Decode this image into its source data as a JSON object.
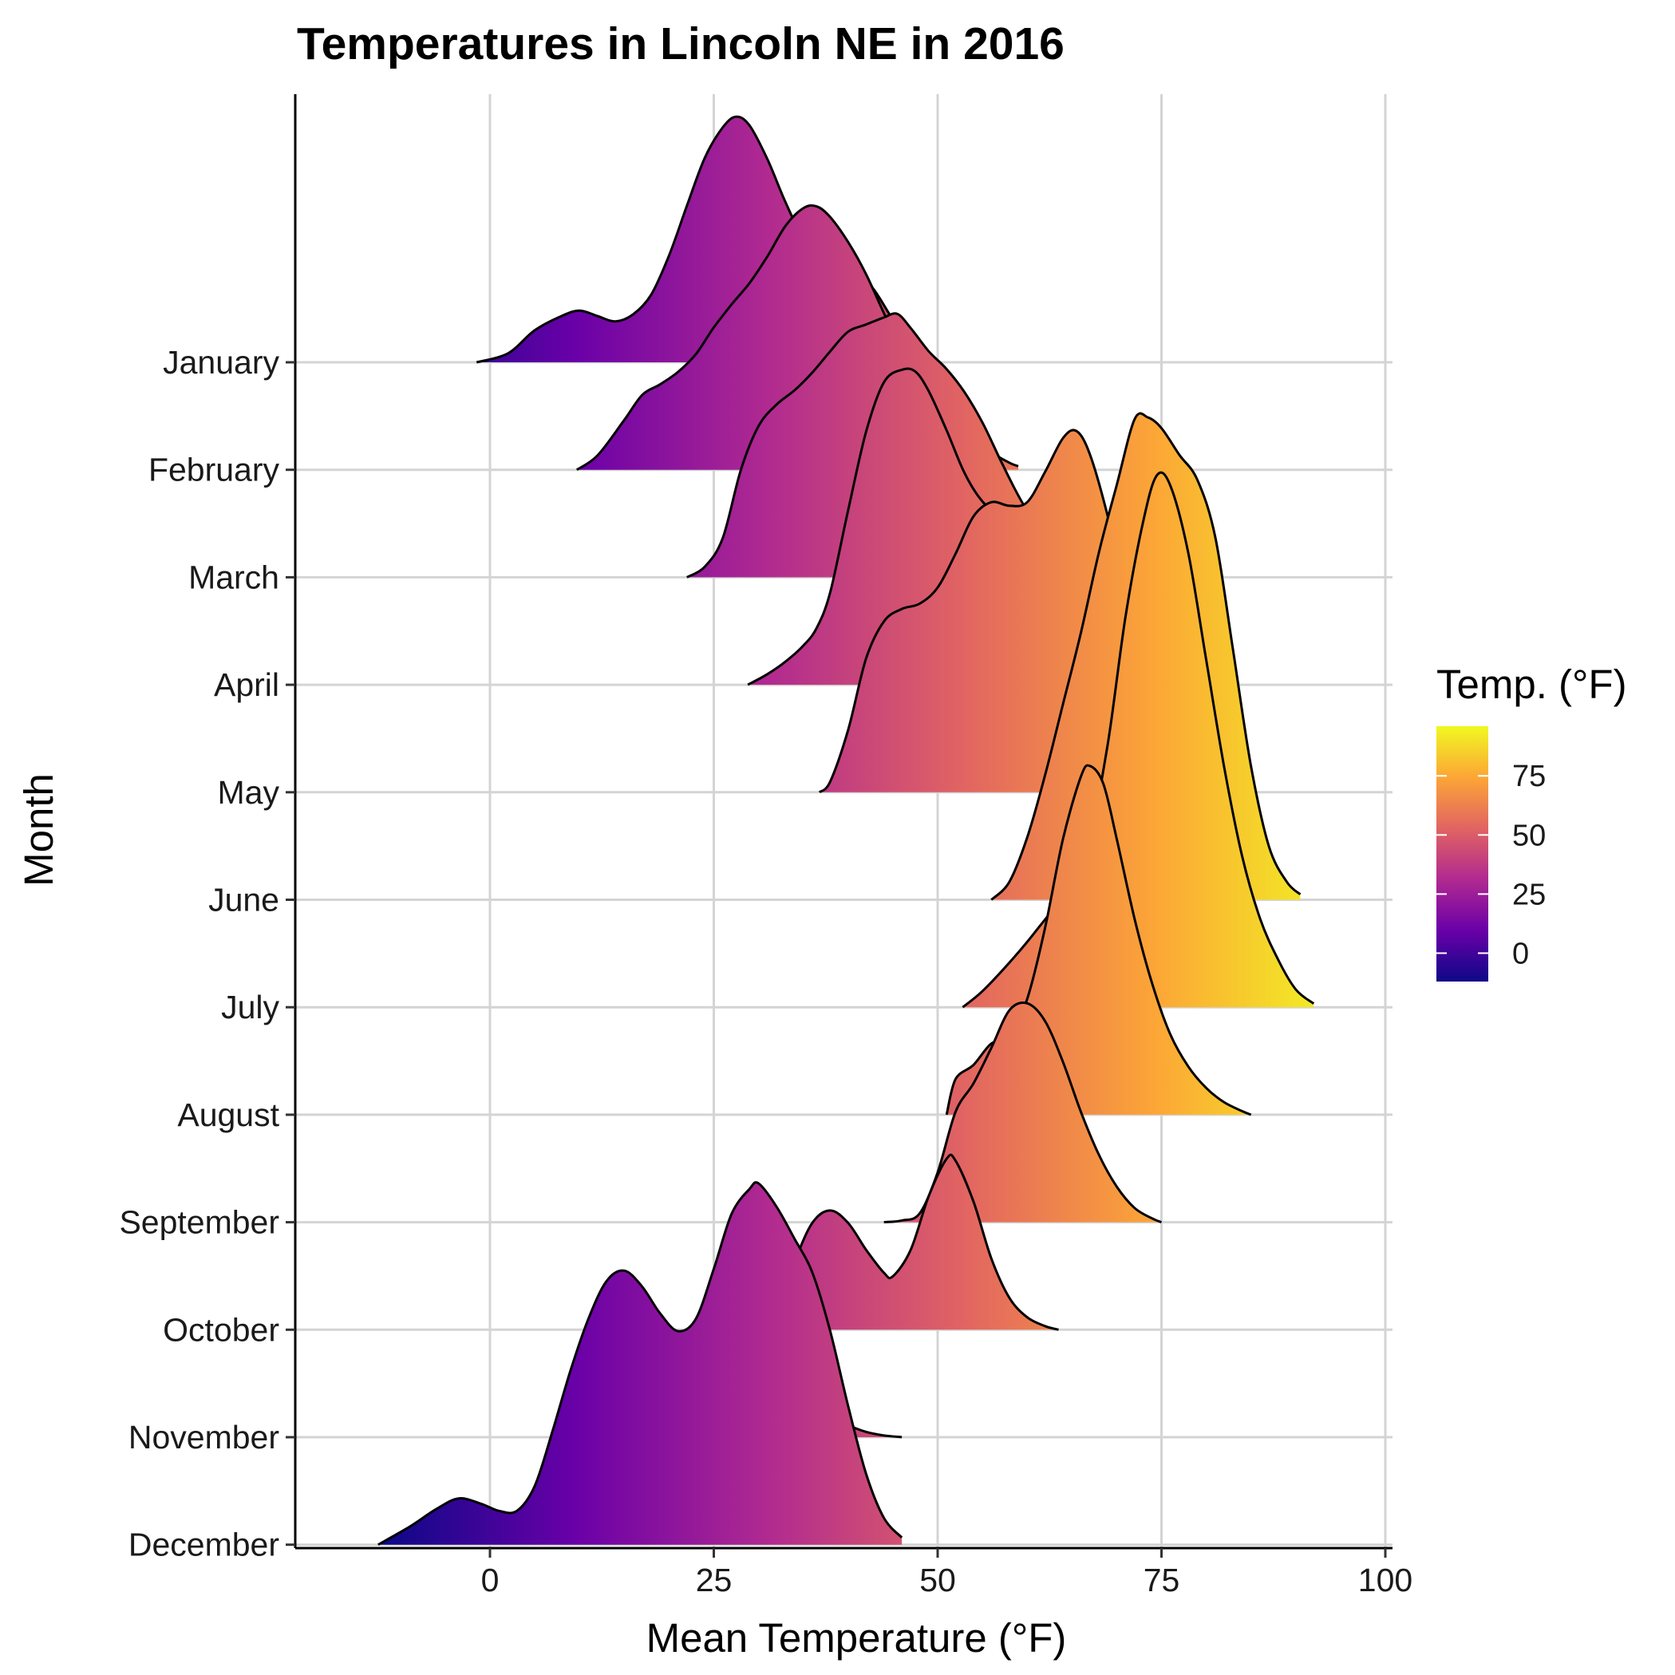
{
  "chart_data": {
    "type": "ridgeline",
    "title": "Temperatures in Lincoln NE in 2016",
    "xlabel": "Mean Temperature (°F)",
    "ylabel": "Month",
    "xlim": [
      -22,
      102
    ],
    "x_ticks": [
      0,
      25,
      50,
      75,
      100
    ],
    "grid": true,
    "legend": {
      "title": "Temp. (°F)",
      "position": "right",
      "ticks": [
        0,
        25,
        50,
        75
      ],
      "range": [
        -12,
        96
      ],
      "colormap": "plasma",
      "colors": [
        "#0d0887",
        "#6a00a8",
        "#b12a90",
        "#e16462",
        "#fca636",
        "#f0f921"
      ]
    },
    "series": [
      {
        "name": "January",
        "points": [
          [
            -1.5,
            0
          ],
          [
            2,
            0.05
          ],
          [
            5,
            0.18
          ],
          [
            8,
            0.26
          ],
          [
            10,
            0.29
          ],
          [
            12,
            0.26
          ],
          [
            14,
            0.23
          ],
          [
            16,
            0.27
          ],
          [
            18,
            0.38
          ],
          [
            20,
            0.6
          ],
          [
            22,
            0.88
          ],
          [
            24,
            1.15
          ],
          [
            26,
            1.32
          ],
          [
            27.5,
            1.38
          ],
          [
            29,
            1.33
          ],
          [
            31,
            1.14
          ],
          [
            33,
            0.9
          ],
          [
            35,
            0.7
          ],
          [
            37,
            0.61
          ],
          [
            39,
            0.58
          ],
          [
            41,
            0.52
          ],
          [
            43,
            0.4
          ],
          [
            45,
            0.24
          ],
          [
            47,
            0.1
          ],
          [
            49,
            0.04
          ]
        ]
      },
      {
        "name": "February",
        "points": [
          [
            9.7,
            0
          ],
          [
            12,
            0.08
          ],
          [
            15,
            0.28
          ],
          [
            17,
            0.42
          ],
          [
            19,
            0.48
          ],
          [
            21,
            0.55
          ],
          [
            23,
            0.65
          ],
          [
            25,
            0.8
          ],
          [
            27,
            0.93
          ],
          [
            29,
            1.05
          ],
          [
            31,
            1.2
          ],
          [
            33,
            1.37
          ],
          [
            35,
            1.47
          ],
          [
            36.5,
            1.48
          ],
          [
            38,
            1.42
          ],
          [
            40,
            1.28
          ],
          [
            42,
            1.1
          ],
          [
            44,
            0.88
          ],
          [
            46,
            0.67
          ],
          [
            48,
            0.5
          ],
          [
            50,
            0.38
          ],
          [
            52,
            0.29
          ],
          [
            54,
            0.2
          ],
          [
            56,
            0.1
          ],
          [
            58,
            0.04
          ],
          [
            59,
            0.02
          ]
        ]
      },
      {
        "name": "March",
        "points": [
          [
            22,
            0
          ],
          [
            24,
            0.06
          ],
          [
            26,
            0.22
          ],
          [
            28,
            0.6
          ],
          [
            30,
            0.85
          ],
          [
            32,
            0.97
          ],
          [
            34,
            1.05
          ],
          [
            36,
            1.15
          ],
          [
            38,
            1.27
          ],
          [
            40,
            1.38
          ],
          [
            42,
            1.42
          ],
          [
            44,
            1.46
          ],
          [
            45.5,
            1.48
          ],
          [
            47,
            1.4
          ],
          [
            49,
            1.27
          ],
          [
            51,
            1.17
          ],
          [
            53,
            1.04
          ],
          [
            55,
            0.87
          ],
          [
            57,
            0.66
          ],
          [
            59,
            0.46
          ],
          [
            61,
            0.29
          ],
          [
            63,
            0.14
          ],
          [
            64.5,
            0.05
          ]
        ]
      },
      {
        "name": "April",
        "points": [
          [
            28.8,
            0
          ],
          [
            31,
            0.06
          ],
          [
            33,
            0.13
          ],
          [
            35,
            0.22
          ],
          [
            36.5,
            0.32
          ],
          [
            38,
            0.52
          ],
          [
            40,
            0.98
          ],
          [
            42,
            1.42
          ],
          [
            44,
            1.7
          ],
          [
            46,
            1.77
          ],
          [
            47.5,
            1.76
          ],
          [
            49,
            1.65
          ],
          [
            51,
            1.43
          ],
          [
            53,
            1.19
          ],
          [
            55,
            1.03
          ],
          [
            57,
            0.95
          ],
          [
            59,
            0.96
          ],
          [
            61,
            0.92
          ],
          [
            63,
            0.86
          ],
          [
            65,
            0.66
          ],
          [
            67,
            0.38
          ],
          [
            69,
            0.16
          ],
          [
            70,
            0.06
          ]
        ]
      },
      {
        "name": "May",
        "points": [
          [
            36.8,
            0
          ],
          [
            38,
            0.06
          ],
          [
            40,
            0.35
          ],
          [
            42,
            0.75
          ],
          [
            44,
            0.96
          ],
          [
            46,
            1.03
          ],
          [
            48,
            1.06
          ],
          [
            50,
            1.15
          ],
          [
            52,
            1.34
          ],
          [
            54,
            1.55
          ],
          [
            56,
            1.63
          ],
          [
            58,
            1.61
          ],
          [
            60,
            1.63
          ],
          [
            62,
            1.8
          ],
          [
            64,
            1.99
          ],
          [
            65.5,
            2.03
          ],
          [
            67,
            1.9
          ],
          [
            69,
            1.55
          ],
          [
            71,
            1.1
          ],
          [
            73,
            0.65
          ],
          [
            75,
            0.3
          ],
          [
            77,
            0.1
          ],
          [
            78,
            0.04
          ]
        ]
      },
      {
        "name": "June",
        "points": [
          [
            56,
            0
          ],
          [
            58,
            0.1
          ],
          [
            60,
            0.35
          ],
          [
            62,
            0.7
          ],
          [
            64,
            1.1
          ],
          [
            66,
            1.5
          ],
          [
            68,
            1.95
          ],
          [
            70,
            2.33
          ],
          [
            72,
            2.7
          ],
          [
            73.5,
            2.71
          ],
          [
            75,
            2.65
          ],
          [
            77,
            2.5
          ],
          [
            79,
            2.36
          ],
          [
            81,
            2.04
          ],
          [
            83,
            1.4
          ],
          [
            85,
            0.75
          ],
          [
            87,
            0.3
          ],
          [
            89,
            0.1
          ],
          [
            90.5,
            0.03
          ]
        ]
      },
      {
        "name": "July",
        "points": [
          [
            52.8,
            0
          ],
          [
            55,
            0.09
          ],
          [
            58,
            0.25
          ],
          [
            61,
            0.43
          ],
          [
            64,
            0.64
          ],
          [
            67,
            0.98
          ],
          [
            69,
            1.48
          ],
          [
            71,
            2.2
          ],
          [
            73,
            2.74
          ],
          [
            74.5,
            2.99
          ],
          [
            76,
            2.93
          ],
          [
            78,
            2.55
          ],
          [
            80,
            1.95
          ],
          [
            82,
            1.35
          ],
          [
            84,
            0.85
          ],
          [
            86,
            0.5
          ],
          [
            88,
            0.27
          ],
          [
            90,
            0.1
          ],
          [
            92,
            0.02
          ]
        ]
      },
      {
        "name": "August",
        "points": [
          [
            51,
            0
          ],
          [
            52,
            0.2
          ],
          [
            54,
            0.28
          ],
          [
            56,
            0.4
          ],
          [
            58,
            0.43
          ],
          [
            60,
            0.65
          ],
          [
            62,
            1.05
          ],
          [
            64,
            1.55
          ],
          [
            66,
            1.9
          ],
          [
            67,
            1.96
          ],
          [
            68.5,
            1.86
          ],
          [
            70,
            1.55
          ],
          [
            72,
            1.1
          ],
          [
            74,
            0.73
          ],
          [
            76,
            0.45
          ],
          [
            78,
            0.27
          ],
          [
            80,
            0.15
          ],
          [
            82,
            0.07
          ],
          [
            84,
            0.02
          ],
          [
            85,
            0
          ]
        ]
      },
      {
        "name": "September",
        "points": [
          [
            44,
            0
          ],
          [
            46,
            0.01
          ],
          [
            48,
            0.05
          ],
          [
            50,
            0.28
          ],
          [
            52,
            0.62
          ],
          [
            54,
            0.78
          ],
          [
            56,
            0.98
          ],
          [
            58,
            1.19
          ],
          [
            60,
            1.23
          ],
          [
            62,
            1.13
          ],
          [
            64,
            0.9
          ],
          [
            66,
            0.62
          ],
          [
            68,
            0.38
          ],
          [
            70,
            0.2
          ],
          [
            72,
            0.08
          ],
          [
            74,
            0.02
          ],
          [
            75,
            0
          ]
        ]
      },
      {
        "name": "October",
        "points": [
          [
            30.5,
            0
          ],
          [
            32,
            0.1
          ],
          [
            34,
            0.38
          ],
          [
            36,
            0.6
          ],
          [
            38,
            0.67
          ],
          [
            40,
            0.6
          ],
          [
            42,
            0.45
          ],
          [
            44,
            0.32
          ],
          [
            45,
            0.3
          ],
          [
            47,
            0.45
          ],
          [
            49,
            0.75
          ],
          [
            51,
            0.96
          ],
          [
            52,
            0.95
          ],
          [
            54,
            0.72
          ],
          [
            56,
            0.4
          ],
          [
            58,
            0.18
          ],
          [
            60,
            0.07
          ],
          [
            62,
            0.02
          ],
          [
            63.5,
            0
          ]
        ]
      },
      {
        "name": "November",
        "points": [
          [
            18,
            0
          ],
          [
            20,
            0.04
          ],
          [
            22,
            0.14
          ],
          [
            24,
            0.26
          ],
          [
            26,
            0.38
          ],
          [
            28,
            0.5
          ],
          [
            30,
            0.54
          ],
          [
            32,
            0.48
          ],
          [
            34,
            0.38
          ],
          [
            36,
            0.25
          ],
          [
            38,
            0.14
          ],
          [
            40,
            0.07
          ],
          [
            42,
            0.03
          ],
          [
            44,
            0.01
          ],
          [
            46,
            0
          ]
        ]
      },
      {
        "name": "December",
        "points": [
          [
            -12.5,
            0
          ],
          [
            -9,
            0.1
          ],
          [
            -6,
            0.2
          ],
          [
            -3.5,
            0.26
          ],
          [
            -1,
            0.23
          ],
          [
            1,
            0.19
          ],
          [
            3,
            0.19
          ],
          [
            5,
            0.33
          ],
          [
            7,
            0.64
          ],
          [
            9,
            0.98
          ],
          [
            11,
            1.27
          ],
          [
            13,
            1.48
          ],
          [
            15,
            1.54
          ],
          [
            17,
            1.45
          ],
          [
            19,
            1.3
          ],
          [
            21,
            1.2
          ],
          [
            23,
            1.27
          ],
          [
            25,
            1.55
          ],
          [
            27,
            1.86
          ],
          [
            29,
            2.0
          ],
          [
            30,
            2.03
          ],
          [
            32,
            1.9
          ],
          [
            34,
            1.72
          ],
          [
            36,
            1.53
          ],
          [
            38,
            1.2
          ],
          [
            40,
            0.78
          ],
          [
            42,
            0.4
          ],
          [
            44,
            0.15
          ],
          [
            46,
            0.04
          ]
        ]
      }
    ]
  }
}
